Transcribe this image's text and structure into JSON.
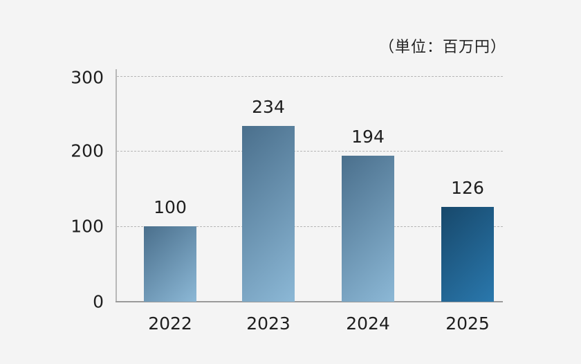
{
  "chart_data": {
    "type": "bar",
    "title": "",
    "unit_label": "（単位：百万円）",
    "xlabel": "",
    "ylabel": "",
    "categories": [
      "2022",
      "2023",
      "2024",
      "2025"
    ],
    "values": [
      100,
      234,
      194,
      126
    ],
    "value_labels": [
      "100",
      "234",
      "194",
      "126"
    ],
    "ylim": [
      0,
      300
    ],
    "yticks": [
      "0",
      "100",
      "200",
      "300"
    ],
    "grid": true,
    "legend": null,
    "colors": {
      "bar_default_start": "#4a6f8c",
      "bar_default_end": "#8cb8d6",
      "bar_highlight_start": "#17486b",
      "bar_highlight_end": "#2a78ad",
      "background": "#f4f4f4"
    }
  }
}
